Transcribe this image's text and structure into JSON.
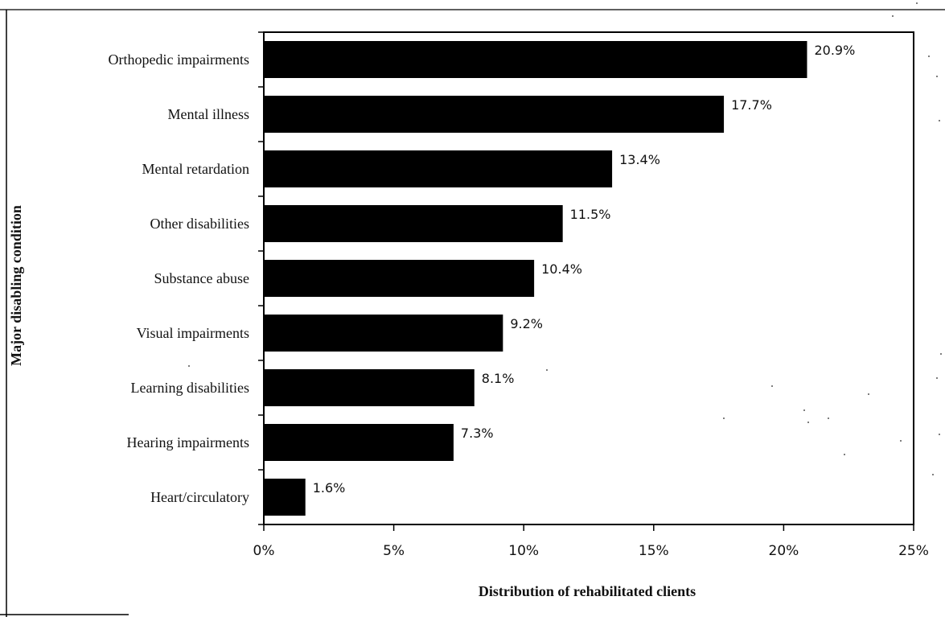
{
  "chart_data": {
    "type": "bar",
    "orientation": "horizontal",
    "categories": [
      "Orthopedic impairments",
      "Mental illness",
      "Mental retardation",
      "Other disabilities",
      "Substance abuse",
      "Visual impairments",
      "Learning disabilities",
      "Hearing impairments",
      "Heart/circulatory"
    ],
    "values": [
      20.9,
      17.7,
      13.4,
      11.5,
      10.4,
      9.2,
      8.1,
      7.3,
      1.6
    ],
    "value_labels": [
      "20.9%",
      "17.7%",
      "13.4%",
      "11.5%",
      "10.4%",
      "9.2%",
      "8.1%",
      "7.3%",
      "1.6%"
    ],
    "xlim": [
      0,
      25
    ],
    "xticks": [
      0,
      5,
      10,
      15,
      20,
      25
    ],
    "xtick_labels": [
      "0%",
      "5%",
      "10%",
      "15%",
      "20%",
      "25%"
    ],
    "title": "",
    "xlabel": "Distribution of rehabilitated clients",
    "ylabel": "Major disabling condition",
    "grid": false,
    "legend": "none",
    "colors": {
      "bar": "#000000",
      "axis": "#000000",
      "text": "#111111"
    }
  }
}
